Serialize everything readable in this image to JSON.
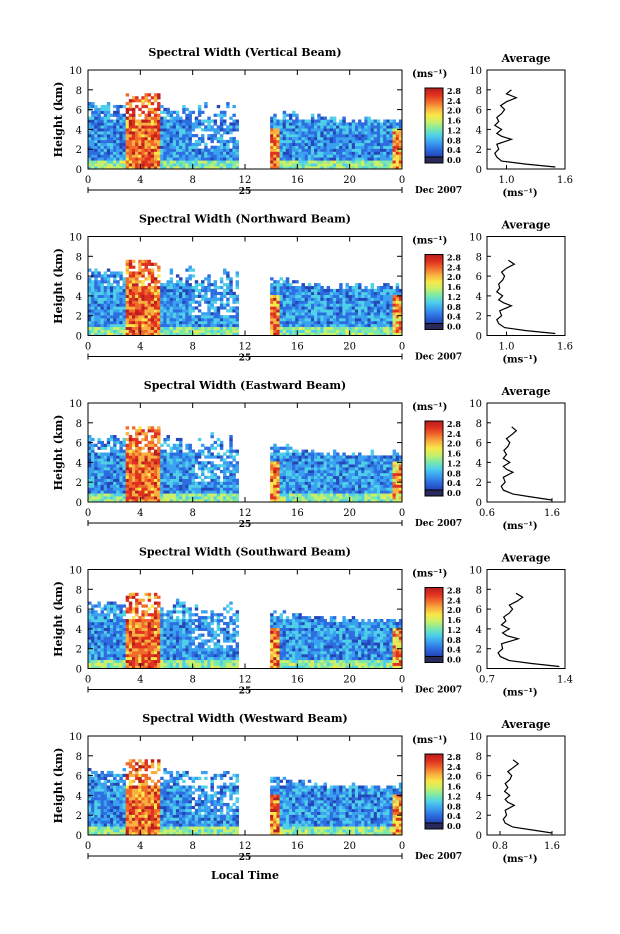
{
  "figure": {
    "xlabel": "Local Time",
    "date_label": "Dec 2007",
    "day_label": "25",
    "colorbar_unit": "(ms⁻¹)",
    "avg_title": "Average",
    "avg_unit": "(ms⁻¹)"
  },
  "colors": {
    "colormap": [
      "#1f2d6e",
      "#2447b8",
      "#2d6de0",
      "#3aa0f0",
      "#4fd0e8",
      "#7de8a8",
      "#c8f06a",
      "#f8e848",
      "#f8b040",
      "#f06a2a",
      "#e03020",
      "#b81e1e"
    ]
  },
  "chart_data": [
    {
      "type": "heatmap",
      "title": "Spectral Width (Vertical Beam)",
      "ylabel": "Height (km)",
      "xlim": [
        0,
        24
      ],
      "ylim": [
        0,
        10
      ],
      "xticks": [
        "0",
        "4",
        "8",
        "12",
        "16",
        "20",
        "0"
      ],
      "yticks": [
        "0",
        "2",
        "4",
        "6",
        "8",
        "10"
      ],
      "colorbar_ticks": [
        "0.0",
        "0.4",
        "0.8",
        "1.2",
        "1.6",
        "2.0",
        "2.4",
        "2.8"
      ],
      "average_profile": {
        "xlim": [
          0.8,
          1.6
        ],
        "xticks": [
          "1.0",
          "1.6"
        ],
        "ylim": [
          0,
          10
        ],
        "yticks": [
          "0",
          "2",
          "4",
          "6",
          "8",
          "10"
        ],
        "height": [
          0.2,
          0.5,
          0.8,
          1.2,
          1.6,
          2.0,
          2.5,
          3.0,
          3.3,
          3.6,
          4.0,
          4.4,
          4.8,
          5.2,
          5.6,
          6.0,
          6.4,
          6.8,
          7.2,
          7.6,
          8.0
        ],
        "value": [
          1.5,
          1.2,
          0.95,
          0.9,
          0.88,
          0.92,
          0.9,
          1.05,
          0.95,
          0.9,
          0.95,
          0.88,
          0.92,
          0.9,
          0.95,
          0.98,
          0.94,
          1.0,
          1.1,
          1.0,
          1.05
        ]
      }
    },
    {
      "type": "heatmap",
      "title": "Spectral Width (Northward Beam)",
      "ylabel": "Height (km)",
      "xlim": [
        0,
        24
      ],
      "ylim": [
        0,
        10
      ],
      "xticks": [
        "0",
        "4",
        "8",
        "12",
        "16",
        "20",
        "0"
      ],
      "yticks": [
        "0",
        "2",
        "4",
        "6",
        "8",
        "10"
      ],
      "colorbar_ticks": [
        "0.0",
        "0.4",
        "0.8",
        "1.2",
        "1.6",
        "2.0",
        "2.4",
        "2.8"
      ],
      "average_profile": {
        "xlim": [
          0.8,
          1.6
        ],
        "xticks": [
          "1.0",
          "1.6"
        ],
        "ylim": [
          0,
          10
        ],
        "yticks": [
          "0",
          "2",
          "4",
          "6",
          "8",
          "10"
        ],
        "height": [
          0.2,
          0.5,
          0.8,
          1.2,
          1.6,
          2.0,
          2.5,
          3.0,
          3.3,
          3.6,
          4.0,
          4.4,
          4.8,
          5.2,
          5.6,
          6.0,
          6.4,
          6.8,
          7.2,
          7.6
        ],
        "value": [
          1.5,
          1.2,
          0.98,
          0.92,
          0.9,
          0.95,
          0.93,
          1.05,
          0.97,
          0.92,
          0.96,
          0.9,
          0.93,
          0.92,
          0.96,
          0.98,
          0.95,
          1.0,
          1.08,
          1.02
        ]
      }
    },
    {
      "type": "heatmap",
      "title": "Spectral Width (Eastward Beam)",
      "ylabel": "Height (km)",
      "xlim": [
        0,
        24
      ],
      "ylim": [
        0,
        10
      ],
      "xticks": [
        "0",
        "4",
        "8",
        "12",
        "16",
        "20",
        "0"
      ],
      "yticks": [
        "0",
        "2",
        "4",
        "6",
        "8",
        "10"
      ],
      "colorbar_ticks": [
        "0.0",
        "0.4",
        "0.8",
        "1.2",
        "1.6",
        "2.0",
        "2.4",
        "2.8"
      ],
      "average_profile": {
        "xlim": [
          0.6,
          1.8
        ],
        "xticks": [
          "0.6",
          "1.6"
        ],
        "ylim": [
          0,
          10
        ],
        "yticks": [
          "0",
          "2",
          "4",
          "6",
          "8",
          "10"
        ],
        "height": [
          0.2,
          0.5,
          0.8,
          1.2,
          1.6,
          2.0,
          2.5,
          3.0,
          3.3,
          3.6,
          4.0,
          4.4,
          4.8,
          5.2,
          5.6,
          6.0,
          6.4,
          6.8,
          7.2,
          7.6
        ],
        "value": [
          1.6,
          1.3,
          1.0,
          0.85,
          0.82,
          0.88,
          0.85,
          1.0,
          0.9,
          0.85,
          0.95,
          0.85,
          0.9,
          0.86,
          0.92,
          0.95,
          0.9,
          0.98,
          1.05,
          0.98
        ]
      }
    },
    {
      "type": "heatmap",
      "title": "Spectral Width (Southward Beam)",
      "ylabel": "Height (km)",
      "xlim": [
        0,
        24
      ],
      "ylim": [
        0,
        10
      ],
      "xticks": [
        "0",
        "4",
        "8",
        "12",
        "16",
        "20",
        "0"
      ],
      "yticks": [
        "0",
        "2",
        "4",
        "6",
        "8",
        "10"
      ],
      "colorbar_ticks": [
        "0.0",
        "0.4",
        "0.8",
        "1.2",
        "1.6",
        "2.0",
        "2.4",
        "2.8"
      ],
      "average_profile": {
        "xlim": [
          0.7,
          1.4
        ],
        "xticks": [
          "0.7",
          "1.4"
        ],
        "ylim": [
          0,
          10
        ],
        "yticks": [
          "0",
          "2",
          "4",
          "6",
          "8",
          "10"
        ],
        "height": [
          0.2,
          0.5,
          0.8,
          1.2,
          1.6,
          2.0,
          2.5,
          3.0,
          3.3,
          3.6,
          4.0,
          4.4,
          4.8,
          5.2,
          5.6,
          6.0,
          6.4,
          6.8,
          7.2,
          7.6
        ],
        "value": [
          1.35,
          1.1,
          0.9,
          0.82,
          0.8,
          0.84,
          0.83,
          0.98,
          0.88,
          0.84,
          0.9,
          0.83,
          0.87,
          0.85,
          0.9,
          0.93,
          0.9,
          0.97,
          1.02,
          0.96
        ]
      }
    },
    {
      "type": "heatmap",
      "title": "Spectral Width (Westward Beam)",
      "ylabel": "Height (km)",
      "xlim": [
        0,
        24
      ],
      "ylim": [
        0,
        10
      ],
      "xticks": [
        "0",
        "4",
        "8",
        "12",
        "16",
        "20",
        "0"
      ],
      "yticks": [
        "0",
        "2",
        "4",
        "6",
        "8",
        "10"
      ],
      "colorbar_ticks": [
        "0.0",
        "0.4",
        "0.8",
        "1.2",
        "1.6",
        "2.0",
        "2.4",
        "2.8"
      ],
      "average_profile": {
        "xlim": [
          0.6,
          1.8
        ],
        "xticks": [
          "0.8",
          "1.6"
        ],
        "ylim": [
          0,
          10
        ],
        "yticks": [
          "0",
          "2",
          "4",
          "6",
          "8",
          "10"
        ],
        "height": [
          0.2,
          0.5,
          0.8,
          1.2,
          1.6,
          2.0,
          2.5,
          3.0,
          3.3,
          3.6,
          4.0,
          4.4,
          4.8,
          5.2,
          5.6,
          6.0,
          6.4,
          6.8,
          7.2,
          7.6
        ],
        "value": [
          1.6,
          1.3,
          1.0,
          0.88,
          0.85,
          0.9,
          0.88,
          1.02,
          0.92,
          0.88,
          0.95,
          0.87,
          0.92,
          0.88,
          0.95,
          0.98,
          0.92,
          1.0,
          1.08,
          1.0
        ]
      }
    }
  ]
}
